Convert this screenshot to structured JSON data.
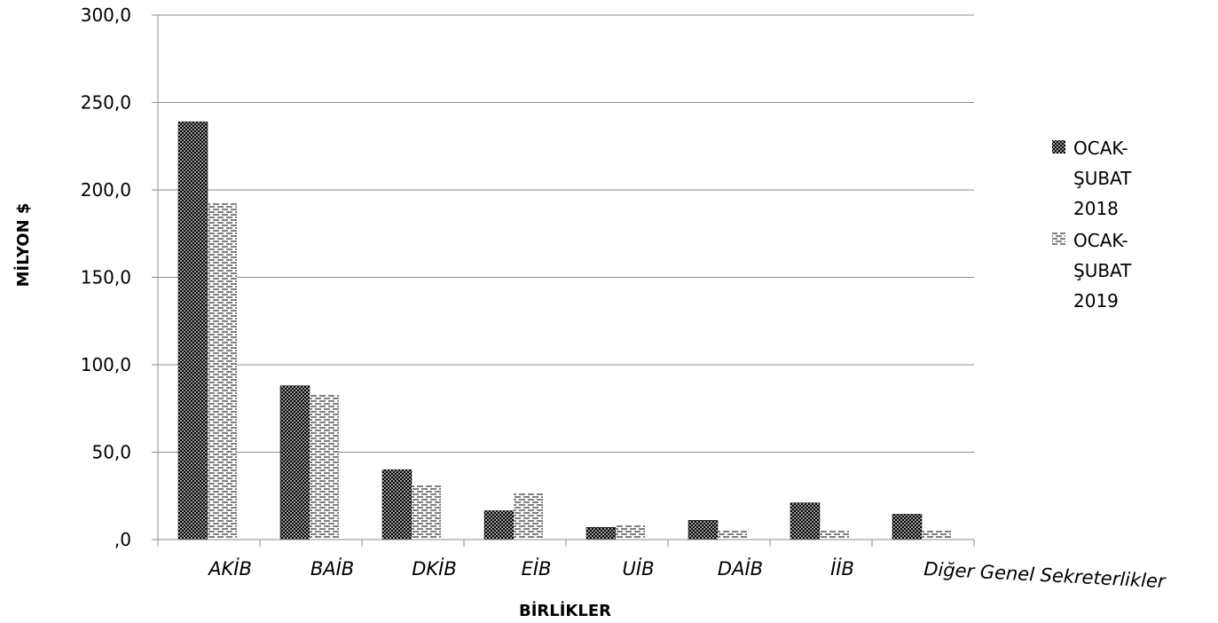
{
  "chart_data": {
    "type": "bar",
    "xlabel": "BİRLİKLER",
    "ylabel": "MİLYON $",
    "ylim": [
      0,
      300
    ],
    "yticks": [
      0,
      50,
      100,
      150,
      200,
      250,
      300
    ],
    "ytick_labels": [
      ",0",
      "50,0",
      "100,0",
      "150,0",
      "200,0",
      "250,0",
      "300,0"
    ],
    "grid": true,
    "legend_position": "right",
    "categories": [
      "AKİB",
      "BAİB",
      "DKİB",
      "EİB",
      "UİB",
      "DAİB",
      "İİB",
      "Diğer Genel Sekreterlikler"
    ],
    "series": [
      {
        "name": "OCAK-ŞUBAT 2018",
        "legend_lines": [
          "OCAK-",
          "ŞUBAT",
          "2018"
        ],
        "pattern": "crosshatch",
        "values": [
          239.0,
          88.0,
          40.0,
          16.5,
          7.0,
          11.0,
          21.0,
          14.5
        ]
      },
      {
        "name": "OCAK-ŞUBAT 2019",
        "legend_lines": [
          "OCAK-",
          "ŞUBAT",
          "2019"
        ],
        "pattern": "dashes",
        "values": [
          193.0,
          83.0,
          31.5,
          26.5,
          8.0,
          5.0,
          5.5,
          5.5
        ]
      }
    ]
  }
}
